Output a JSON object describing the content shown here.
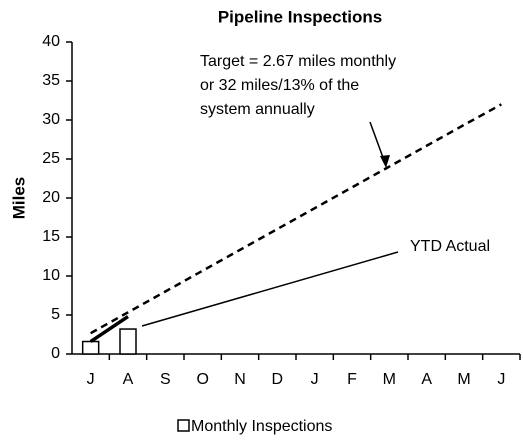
{
  "chart_data": {
    "type": "bar",
    "title": "Pipeline Inspections",
    "y_label": "Miles",
    "categories": [
      "J",
      "A",
      "S",
      "O",
      "N",
      "D",
      "J",
      "F",
      "M",
      "A",
      "M",
      "J"
    ],
    "series": [
      {
        "name": "Monthly Inspections",
        "type": "bar",
        "color": "#ffffff",
        "values": [
          1.6,
          3.2,
          null,
          null,
          null,
          null,
          null,
          null,
          null,
          null,
          null,
          null
        ]
      },
      {
        "type": "line",
        "style": "dashed",
        "color": "#000000",
        "values": [
          2.67,
          5.34,
          8.01,
          10.68,
          13.35,
          16.02,
          18.69,
          21.36,
          24.03,
          26.7,
          29.37,
          32
        ]
      },
      {
        "type": "line",
        "style": "solid",
        "color": "#000000",
        "values": [
          1.6,
          4.8,
          null,
          null,
          null,
          null,
          null,
          null,
          null,
          null,
          null,
          null
        ]
      }
    ],
    "annotations": [
      "Target = 2.67 miles monthly",
      "or 32 miles/13% of the",
      "system annually",
      "YTD Actual"
    ],
    "ylim": [
      0,
      40
    ],
    "yticks": [
      0,
      5,
      10,
      15,
      20,
      25,
      30,
      35,
      40
    ],
    "legend": "bottom"
  }
}
